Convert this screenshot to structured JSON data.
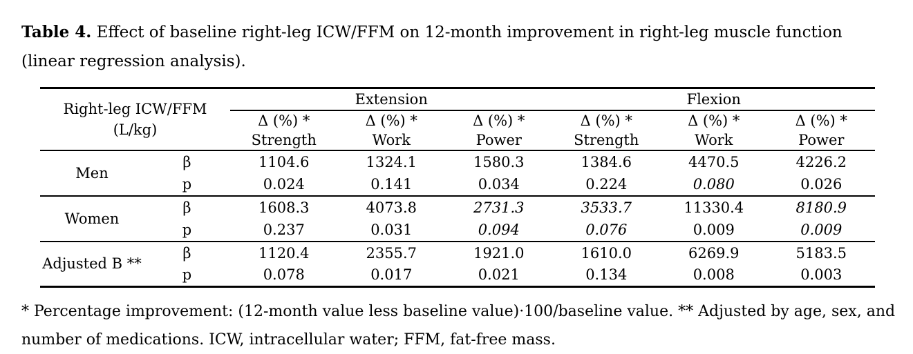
{
  "caption": {
    "label": "Table 4.",
    "text": "Effect of baseline right-leg ICW/FFM on 12-month improvement in right-leg muscle function (linear regression analysis)."
  },
  "table": {
    "row_header": {
      "title": "Right-leg ICW/FFM",
      "unit": "(L/kg)"
    },
    "groups": [
      "Extension",
      "Flexion"
    ],
    "sub_header_delta": "Δ (%) *",
    "sub_headers": [
      "Strength",
      "Work",
      "Power",
      "Strength",
      "Work",
      "Power"
    ],
    "rows": [
      {
        "label": "Men",
        "stat_rows": [
          {
            "stat": "β",
            "values": [
              "1104.6",
              "1324.1",
              "1580.3",
              "1384.6",
              "4470.5",
              "4226.2"
            ]
          },
          {
            "stat": "p",
            "values": [
              "0.024",
              "0.141",
              "0.034",
              "0.224",
              "0.080",
              "0.026"
            ]
          }
        ]
      },
      {
        "label": "Women",
        "stat_rows": [
          {
            "stat": "β",
            "values": [
              "1608.3",
              "4073.8",
              "2731.3",
              "3533.7",
              "11330.4",
              "8180.9"
            ]
          },
          {
            "stat": "p",
            "values": [
              "0.237",
              "0.031",
              "0.094",
              "0.076",
              "0.009",
              "0.009"
            ]
          }
        ]
      },
      {
        "label": "Adjusted B **",
        "stat_rows": [
          {
            "stat": "β",
            "values": [
              "1120.4",
              "2355.7",
              "1921.0",
              "1610.0",
              "6269.9",
              "5183.5"
            ]
          },
          {
            "stat": "p",
            "values": [
              "0.078",
              "0.017",
              "0.021",
              "0.134",
              "0.008",
              "0.003"
            ]
          }
        ]
      }
    ]
  },
  "footnote": "* Percentage improvement: (12-month value less baseline value)·100/baseline value. ** Adjusted by age, sex, and number of medications. ICW, intracellular water; FFM, fat-free mass.",
  "colors": {
    "text": "#000000",
    "background": "#ffffff",
    "rule": "#000000"
  }
}
